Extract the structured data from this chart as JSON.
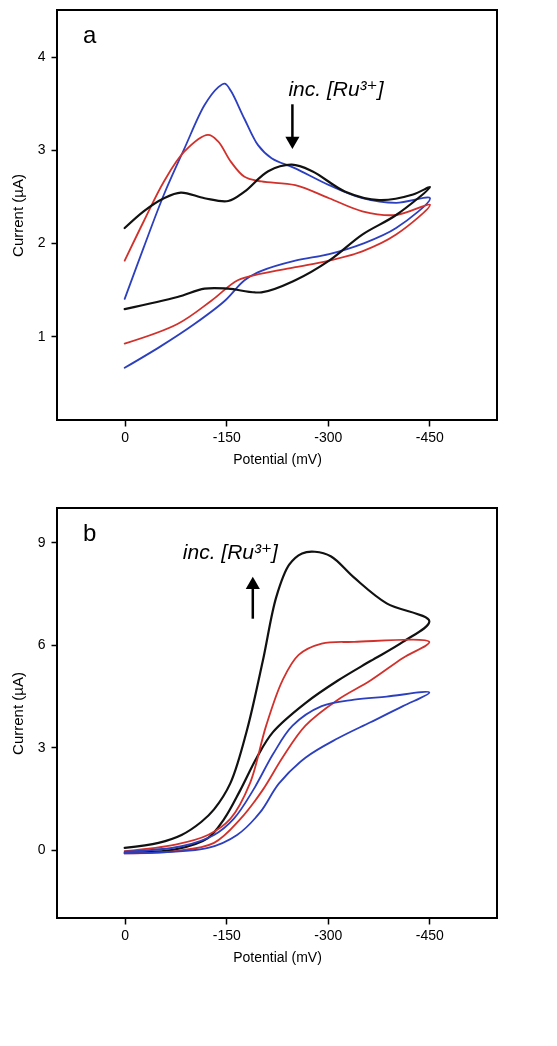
{
  "chart_data": [
    {
      "type": "line",
      "xlabel": "Potential (mV)",
      "ylabel": "Current (µA)",
      "xlim": [
        100,
        -550
      ],
      "ylim": [
        0.1,
        4.5
      ],
      "xticks": [
        0,
        -150,
        -300,
        -450
      ],
      "yticks": [
        1,
        2,
        3,
        4
      ],
      "grid": false,
      "marker": "none",
      "line_style": "solid",
      "annotations": [
        "a",
        "inc. [Ru³⁺]"
      ],
      "series": [
        {
          "color": "#2b3fbf",
          "x": [
            0,
            -28,
            -58,
            -88,
            -118,
            -138,
            -148,
            -157,
            -177,
            -197,
            -217,
            -252,
            -302,
            -351,
            -401,
            -451,
            -401,
            -351,
            -302,
            -252,
            -202,
            -177,
            -148,
            -103,
            -53,
            0
          ],
          "values": [
            1.4,
            1.95,
            2.52,
            3.01,
            3.48,
            3.67,
            3.71,
            3.63,
            3.33,
            3.05,
            2.91,
            2.8,
            2.62,
            2.48,
            2.43,
            2.48,
            2.16,
            1.99,
            1.88,
            1.81,
            1.7,
            1.6,
            1.38,
            1.13,
            0.89,
            0.66
          ]
        },
        {
          "color": "#d2312b",
          "x": [
            0,
            -28,
            -58,
            -88,
            -123,
            -138,
            -157,
            -177,
            -202,
            -252,
            -302,
            -351,
            -401,
            -451,
            -401,
            -351,
            -302,
            -252,
            -202,
            -167,
            -128,
            -78,
            0
          ],
          "values": [
            1.81,
            2.23,
            2.66,
            2.98,
            3.16,
            3.09,
            2.87,
            2.71,
            2.66,
            2.62,
            2.48,
            2.34,
            2.3,
            2.41,
            2.09,
            1.91,
            1.81,
            1.74,
            1.67,
            1.6,
            1.38,
            1.13,
            0.92
          ]
        },
        {
          "color": "#111111",
          "x": [
            0,
            -28,
            -58,
            -83,
            -118,
            -153,
            -177,
            -212,
            -247,
            -277,
            -326,
            -376,
            -426,
            -451,
            -401,
            -351,
            -302,
            -252,
            -202,
            -153,
            -118,
            -78,
            0
          ],
          "values": [
            2.16,
            2.34,
            2.48,
            2.54,
            2.48,
            2.45,
            2.55,
            2.77,
            2.84,
            2.77,
            2.55,
            2.46,
            2.52,
            2.6,
            2.3,
            2.09,
            1.81,
            1.6,
            1.47,
            1.51,
            1.51,
            1.42,
            1.29
          ]
        }
      ]
    },
    {
      "type": "line",
      "xlabel": "Potential (mV)",
      "ylabel": "Current (µA)",
      "xlim": [
        100,
        -550
      ],
      "ylim": [
        -2,
        10
      ],
      "xticks": [
        0,
        -150,
        -300,
        -450
      ],
      "yticks": [
        0,
        3,
        6,
        9
      ],
      "grid": false,
      "marker": "none",
      "line_style": "solid",
      "annotations": [
        "b",
        "inc. [Ru³⁺]"
      ],
      "series": [
        {
          "color": "#111111",
          "x": [
            0,
            -50,
            -84,
            -113,
            -132,
            -156,
            -180,
            -204,
            -224,
            -243,
            -262,
            -281,
            -305,
            -339,
            -387,
            -450,
            -411,
            -363,
            -315,
            -267,
            -219,
            -195,
            -171,
            -147,
            -123,
            -75,
            0
          ],
          "values": [
            0.05,
            0.2,
            0.43,
            0.81,
            1.18,
            1.94,
            3.45,
            5.52,
            7.4,
            8.34,
            8.67,
            8.72,
            8.58,
            7.96,
            7.21,
            6.69,
            6.08,
            5.52,
            4.95,
            4.29,
            3.44,
            2.69,
            1.75,
            0.9,
            0.34,
            0.01,
            -0.09
          ]
        },
        {
          "color": "#d2312b",
          "x": [
            0,
            -75,
            -123,
            -156,
            -185,
            -209,
            -233,
            -257,
            -291,
            -339,
            -450,
            -411,
            -363,
            -315,
            -267,
            -233,
            -204,
            -171,
            -132,
            -75,
            0
          ],
          "values": [
            -0.04,
            0.15,
            0.43,
            0.9,
            1.94,
            3.63,
            4.95,
            5.7,
            6.03,
            6.08,
            6.08,
            5.61,
            4.95,
            4.39,
            3.63,
            2.69,
            1.75,
            0.9,
            0.2,
            -0.04,
            -0.11
          ]
        },
        {
          "color": "#2b3fbf",
          "x": [
            0,
            -84,
            -132,
            -161,
            -190,
            -219,
            -248,
            -291,
            -339,
            -387,
            -450,
            -411,
            -363,
            -315,
            -267,
            -228,
            -200,
            -166,
            -123,
            0
          ],
          "values": [
            -0.06,
            0.1,
            0.43,
            0.9,
            1.75,
            2.79,
            3.63,
            4.2,
            4.39,
            4.48,
            4.6,
            4.2,
            3.73,
            3.26,
            2.69,
            1.94,
            1.09,
            0.43,
            0.05,
            -0.11
          ]
        }
      ]
    }
  ]
}
